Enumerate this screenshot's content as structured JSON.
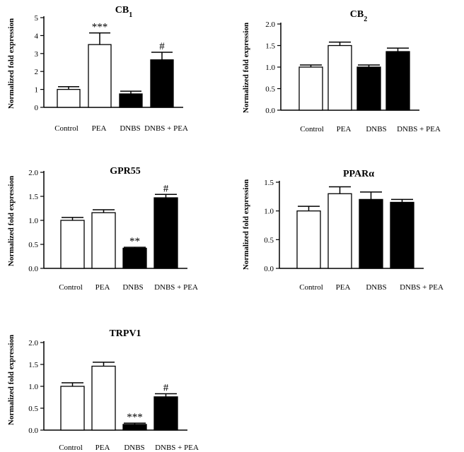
{
  "chart_data": [
    {
      "type": "bar",
      "title": "CB",
      "title_sub": "1",
      "ylabel": "Normalized fold expression",
      "categories": [
        "Control",
        "PEA",
        "DNBS",
        "DNBS + PEA"
      ],
      "values": [
        1.0,
        3.5,
        0.75,
        2.65
      ],
      "errors": [
        0.15,
        0.65,
        0.15,
        0.42
      ],
      "annotations": [
        "",
        "***",
        "",
        "#"
      ],
      "fills": [
        "#ffffff",
        "#ffffff",
        "#000000",
        "#000000"
      ],
      "ylim": [
        0,
        5
      ],
      "yticks": [
        "0",
        "1",
        "2",
        "3",
        "4",
        "5"
      ],
      "grid": false
    },
    {
      "type": "bar",
      "title": "CB",
      "title_sub": "2",
      "ylabel": "Normalized fold expression",
      "categories": [
        "Control",
        "PEA",
        "DNBS",
        "DNBS + PEA"
      ],
      "values": [
        1.0,
        1.5,
        1.0,
        1.36
      ],
      "errors": [
        0.05,
        0.08,
        0.05,
        0.08
      ],
      "annotations": [
        "",
        "",
        "",
        ""
      ],
      "fills": [
        "#ffffff",
        "#ffffff",
        "#000000",
        "#000000"
      ],
      "ylim": [
        0,
        2
      ],
      "yticks": [
        "0.0",
        "0.5",
        "1.0",
        "1.5",
        "2.0"
      ],
      "grid": false
    },
    {
      "type": "bar",
      "title": "GPR55",
      "title_sub": "",
      "ylabel": "Normalized fold expression",
      "categories": [
        "Control",
        "PEA",
        "DNBS",
        "DNBS + PEA"
      ],
      "values": [
        1.0,
        1.16,
        0.42,
        1.47
      ],
      "errors": [
        0.06,
        0.06,
        0.02,
        0.07
      ],
      "annotations": [
        "",
        "",
        "**",
        "#"
      ],
      "fills": [
        "#ffffff",
        "#ffffff",
        "#000000",
        "#000000"
      ],
      "ylim": [
        0,
        2
      ],
      "yticks": [
        "0.0",
        "0.5",
        "1.0",
        "1.5",
        "2.0"
      ],
      "grid": false
    },
    {
      "type": "bar",
      "title": "PPARα",
      "title_sub": "",
      "ylabel": "Normalized fold expression",
      "categories": [
        "Control",
        "PEA",
        "DNBS",
        "DNBS + PEA"
      ],
      "values": [
        1.0,
        1.3,
        1.2,
        1.15
      ],
      "errors": [
        0.08,
        0.12,
        0.13,
        0.05
      ],
      "annotations": [
        "",
        "",
        "",
        ""
      ],
      "fills": [
        "#ffffff",
        "#ffffff",
        "#000000",
        "#000000"
      ],
      "ylim": [
        0,
        1.5
      ],
      "yticks": [
        "0.0",
        "0.5",
        "1.0",
        "1.5"
      ],
      "grid": false
    },
    {
      "type": "bar",
      "title": "TRPV1",
      "title_sub": "",
      "ylabel": "Normalized fold expression",
      "categories": [
        "Control",
        "PEA",
        "DNBS",
        "DNBS + PEA"
      ],
      "values": [
        1.0,
        1.46,
        0.13,
        0.76
      ],
      "errors": [
        0.08,
        0.09,
        0.03,
        0.07
      ],
      "annotations": [
        "",
        "",
        "***",
        "#"
      ],
      "fills": [
        "#ffffff",
        "#ffffff",
        "#000000",
        "#000000"
      ],
      "ylim": [
        0,
        2
      ],
      "yticks": [
        "0.0",
        "0.5",
        "1.0",
        "1.5",
        "2.0"
      ],
      "grid": false
    }
  ]
}
